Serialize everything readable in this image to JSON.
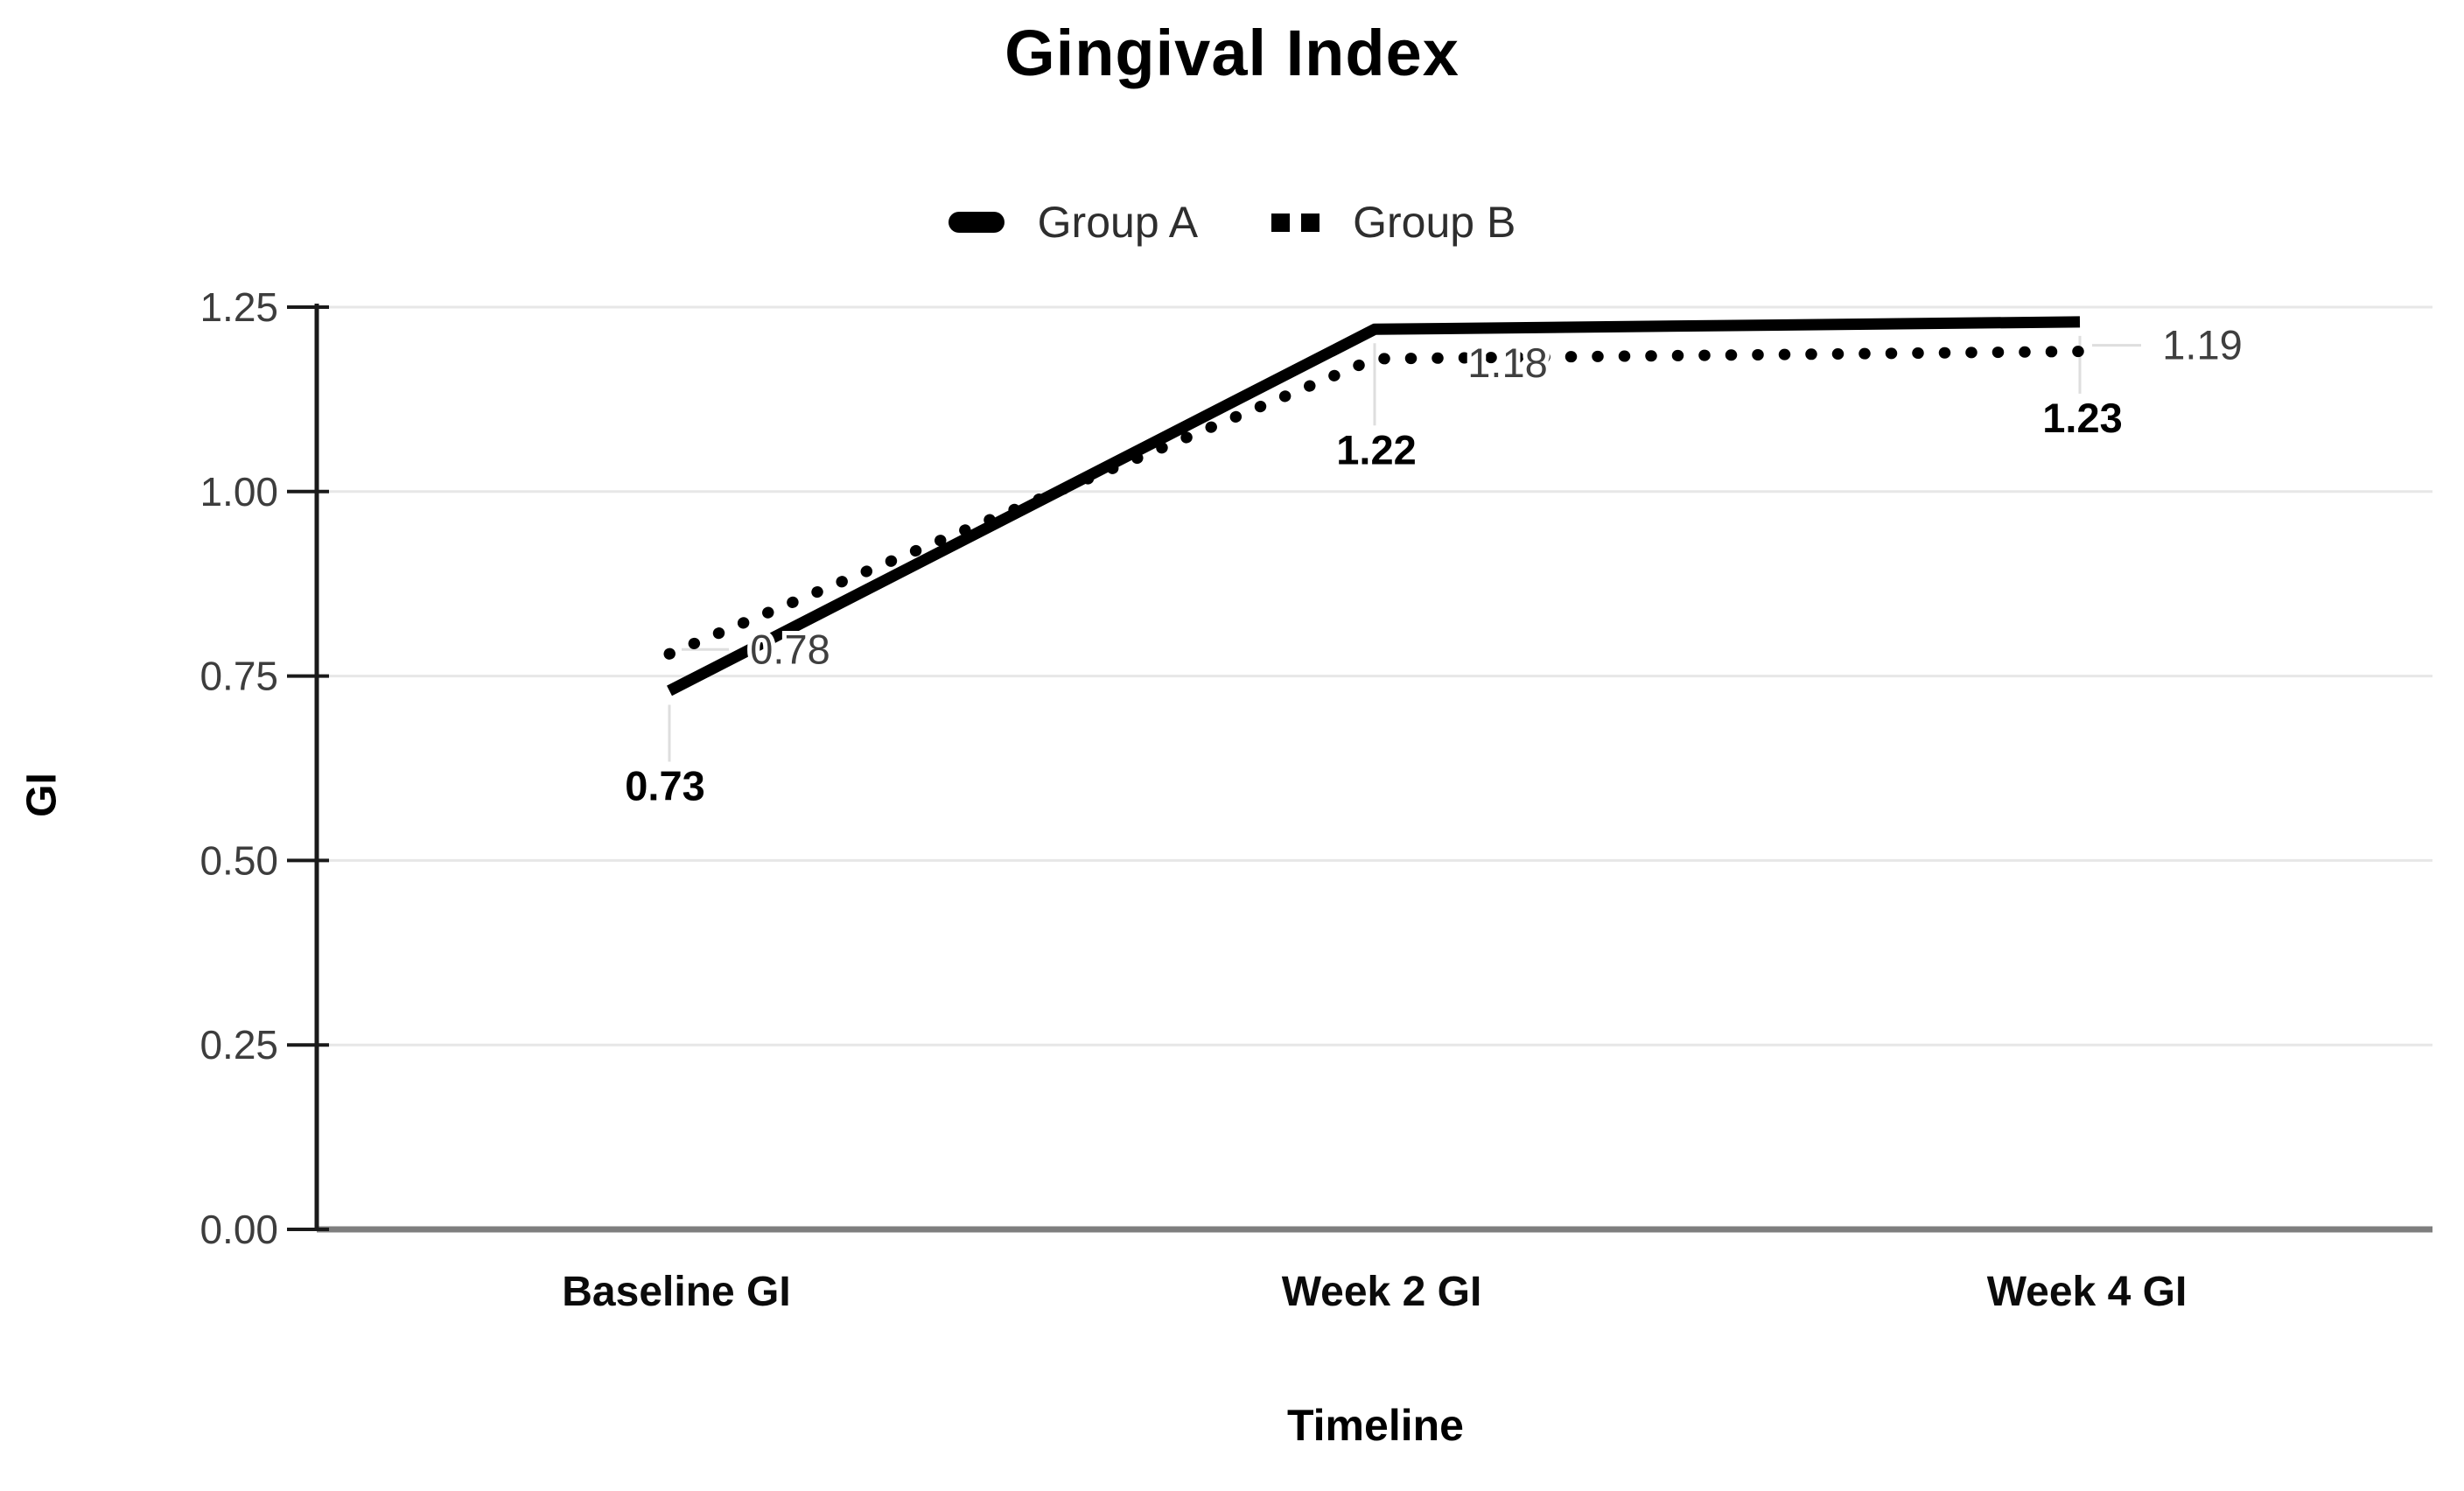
{
  "chart_data": {
    "type": "line",
    "title": "Gingival Index",
    "xlabel": "Timeline",
    "ylabel": "GI",
    "categories": [
      "Baseline GI",
      "Week 2 GI",
      "Week 4 GI"
    ],
    "series": [
      {
        "name": "Group A",
        "values": [
          0.73,
          1.22,
          1.23
        ],
        "labels": [
          "0.73",
          "1.22",
          "1.23"
        ],
        "line_style": "solid",
        "color": "#000000",
        "label_weight": "bold",
        "label_color": "#000000",
        "label_placement": "below"
      },
      {
        "name": "Group B",
        "values": [
          0.78,
          1.18,
          1.19
        ],
        "labels": [
          "0.78",
          "1.18",
          "1.19"
        ],
        "line_style": "dotted",
        "color": "#000000",
        "label_weight": "normal",
        "label_color": "#3f3f3f",
        "label_placement": "right"
      }
    ],
    "ylim": [
      0,
      1.25
    ],
    "yticks": [
      0,
      0.25,
      0.5,
      0.75,
      1.0,
      1.25
    ],
    "ytick_labels": [
      "0.00",
      "0.25",
      "0.50",
      "0.75",
      "1.00",
      "1.25"
    ],
    "grid": true,
    "legend_position": "top",
    "colors": {
      "line": "#000000",
      "grid": "#e7e7e7",
      "baseline": "#7e7e7e",
      "axis": "#1a1a1a",
      "tick_label": "#3d3d3d",
      "leader": "#dedede",
      "background": "#ffffff"
    }
  }
}
